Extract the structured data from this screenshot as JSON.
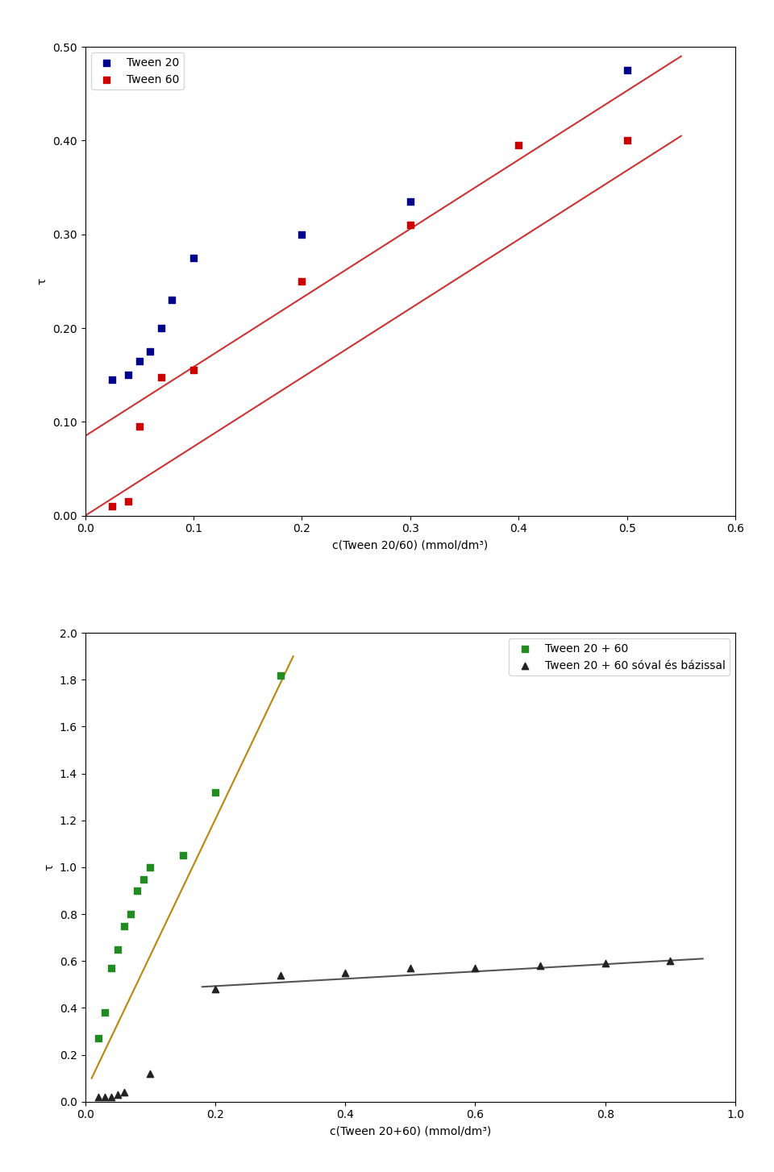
{
  "chart_data": [
    {
      "type": "scatter",
      "xlabel": "c(Tween 20/60) (mmol/dm³)",
      "ylabel": "τ",
      "xlim": [
        0.0,
        0.6
      ],
      "ylim": [
        0.0,
        0.5
      ],
      "xticks": [
        0.0,
        0.1,
        0.2,
        0.3,
        0.4,
        0.5,
        0.6
      ],
      "yticks": [
        {
          "value": 0.0,
          "label": "0.00"
        },
        {
          "value": 0.1,
          "label": "0.10"
        },
        {
          "value": 0.2,
          "label": "0.20"
        },
        {
          "value": 0.3,
          "label": "0.30"
        },
        {
          "value": 0.4,
          "label": "0.40"
        },
        {
          "value": 0.5,
          "label": "0.50"
        }
      ],
      "legend": "upper left",
      "series": [
        {
          "type": "line",
          "color": "#CC3333",
          "x": [
            0.0,
            0.55
          ],
          "values": [
            0.085,
            0.49
          ]
        },
        {
          "type": "scatter",
          "name": "Tween 20",
          "color": "#00008B",
          "marker": "square",
          "x": [
            0.025,
            0.04,
            0.05,
            0.06,
            0.07,
            0.08,
            0.1,
            0.2,
            0.3,
            0.5
          ],
          "values": [
            0.145,
            0.15,
            0.165,
            0.175,
            0.2,
            0.23,
            0.275,
            0.3,
            0.335,
            0.475
          ]
        },
        {
          "type": "line",
          "color": "#CC3333",
          "x": [
            0.0,
            0.55
          ],
          "values": [
            0.0,
            0.405
          ]
        },
        {
          "type": "scatter",
          "name": "Tween 60",
          "color": "#CC0000",
          "marker": "square",
          "x": [
            0.025,
            0.04,
            0.05,
            0.07,
            0.1,
            0.2,
            0.3,
            0.4,
            0.5
          ],
          "values": [
            0.01,
            0.015,
            0.095,
            0.148,
            0.155,
            0.25,
            0.31,
            0.395,
            0.4
          ]
        }
      ]
    },
    {
      "type": "scatter",
      "xlabel": "c(Tween 20+60) (mmol/dm³)",
      "ylabel": "τ",
      "xlim": [
        0.0,
        1.0
      ],
      "ylim": [
        0.0,
        2.0
      ],
      "xticks": [
        0.0,
        0.2,
        0.4,
        0.6,
        0.8,
        1.0
      ],
      "yticks": [
        0.0,
        0.2,
        0.4,
        0.6,
        0.8,
        1.0,
        1.2,
        1.4,
        1.6,
        1.8,
        2.0
      ],
      "legend": "upper right",
      "series": [
        {
          "type": "line",
          "color": "#B8860B",
          "x": [
            0.01,
            0.32
          ],
          "values": [
            0.1,
            1.9
          ]
        },
        {
          "type": "scatter",
          "name": "Tween 20 + 60",
          "color": "#228B22",
          "marker": "square",
          "x": [
            0.02,
            0.03,
            0.04,
            0.05,
            0.06,
            0.07,
            0.08,
            0.09,
            0.1,
            0.15,
            0.2,
            0.3
          ],
          "values": [
            0.27,
            0.38,
            0.57,
            0.65,
            0.75,
            0.8,
            0.9,
            0.95,
            1.0,
            1.05,
            1.32,
            1.82
          ]
        },
        {
          "type": "line",
          "color": "#555555",
          "x": [
            0.18,
            0.95
          ],
          "values": [
            0.49,
            0.61
          ]
        },
        {
          "type": "scatter",
          "name": "Tween 20 + 60 sóval és bázissal",
          "color": "#222222",
          "marker": "triangle",
          "x": [
            0.02,
            0.03,
            0.04,
            0.05,
            0.06,
            0.1,
            0.2,
            0.3,
            0.4,
            0.5,
            0.6,
            0.7,
            0.8,
            0.9
          ],
          "values": [
            0.02,
            0.02,
            0.02,
            0.03,
            0.04,
            0.12,
            0.48,
            0.54,
            0.55,
            0.57,
            0.57,
            0.58,
            0.59,
            0.6
          ]
        }
      ]
    }
  ]
}
